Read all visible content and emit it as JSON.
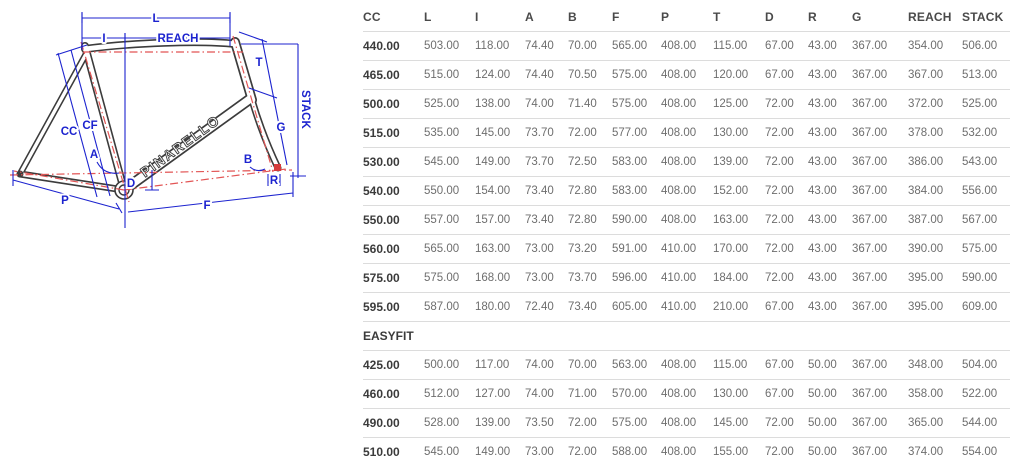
{
  "diagram": {
    "brand": "PINARELLO",
    "labels": {
      "L": "L",
      "I": "I",
      "reach": "REACH",
      "T": "T",
      "G": "G",
      "stack": "STACK",
      "CC": "CC",
      "CF": "CF",
      "A": "A",
      "B": "B",
      "D": "D",
      "R": "R",
      "P": "P",
      "F": "F"
    },
    "colors": {
      "dimension_blue": "#1c23cf",
      "axis_red": "#e25555",
      "frame_outline": "#3c3c3c"
    }
  },
  "table": {
    "columns": [
      "CC",
      "L",
      "I",
      "A",
      "B",
      "F",
      "P",
      "T",
      "D",
      "R",
      "G",
      "REACH",
      "STACK"
    ],
    "sections": [
      {
        "label": null,
        "rows": [
          [
            "440.00",
            "503.00",
            "118.00",
            "74.40",
            "70.00",
            "565.00",
            "408.00",
            "115.00",
            "67.00",
            "43.00",
            "367.00",
            "354.00",
            "506.00"
          ],
          [
            "465.00",
            "515.00",
            "124.00",
            "74.40",
            "70.50",
            "575.00",
            "408.00",
            "120.00",
            "67.00",
            "43.00",
            "367.00",
            "367.00",
            "513.00"
          ],
          [
            "500.00",
            "525.00",
            "138.00",
            "74.00",
            "71.40",
            "575.00",
            "408.00",
            "125.00",
            "72.00",
            "43.00",
            "367.00",
            "372.00",
            "525.00"
          ],
          [
            "515.00",
            "535.00",
            "145.00",
            "73.70",
            "72.00",
            "577.00",
            "408.00",
            "130.00",
            "72.00",
            "43.00",
            "367.00",
            "378.00",
            "532.00"
          ],
          [
            "530.00",
            "545.00",
            "149.00",
            "73.70",
            "72.50",
            "583.00",
            "408.00",
            "139.00",
            "72.00",
            "43.00",
            "367.00",
            "386.00",
            "543.00"
          ],
          [
            "540.00",
            "550.00",
            "154.00",
            "73.40",
            "72.80",
            "583.00",
            "408.00",
            "152.00",
            "72.00",
            "43.00",
            "367.00",
            "384.00",
            "556.00"
          ],
          [
            "550.00",
            "557.00",
            "157.00",
            "73.40",
            "72.80",
            "590.00",
            "408.00",
            "163.00",
            "72.00",
            "43.00",
            "367.00",
            "387.00",
            "567.00"
          ],
          [
            "560.00",
            "565.00",
            "163.00",
            "73.00",
            "73.20",
            "591.00",
            "410.00",
            "170.00",
            "72.00",
            "43.00",
            "367.00",
            "390.00",
            "575.00"
          ],
          [
            "575.00",
            "575.00",
            "168.00",
            "73.00",
            "73.70",
            "596.00",
            "410.00",
            "184.00",
            "72.00",
            "43.00",
            "367.00",
            "395.00",
            "590.00"
          ],
          [
            "595.00",
            "587.00",
            "180.00",
            "72.40",
            "73.40",
            "605.00",
            "410.00",
            "210.00",
            "67.00",
            "43.00",
            "367.00",
            "395.00",
            "609.00"
          ]
        ]
      },
      {
        "label": "EASYFIT",
        "rows": [
          [
            "425.00",
            "500.00",
            "117.00",
            "74.00",
            "70.00",
            "563.00",
            "408.00",
            "115.00",
            "67.00",
            "50.00",
            "367.00",
            "348.00",
            "504.00"
          ],
          [
            "460.00",
            "512.00",
            "127.00",
            "74.00",
            "71.00",
            "570.00",
            "408.00",
            "130.00",
            "67.00",
            "50.00",
            "367.00",
            "358.00",
            "522.00"
          ],
          [
            "490.00",
            "528.00",
            "139.00",
            "73.50",
            "72.00",
            "575.00",
            "408.00",
            "145.00",
            "72.00",
            "50.00",
            "367.00",
            "365.00",
            "544.00"
          ],
          [
            "510.00",
            "545.00",
            "149.00",
            "73.00",
            "72.00",
            "588.00",
            "408.00",
            "155.00",
            "72.00",
            "50.00",
            "367.00",
            "374.00",
            "554.00"
          ]
        ]
      }
    ]
  }
}
